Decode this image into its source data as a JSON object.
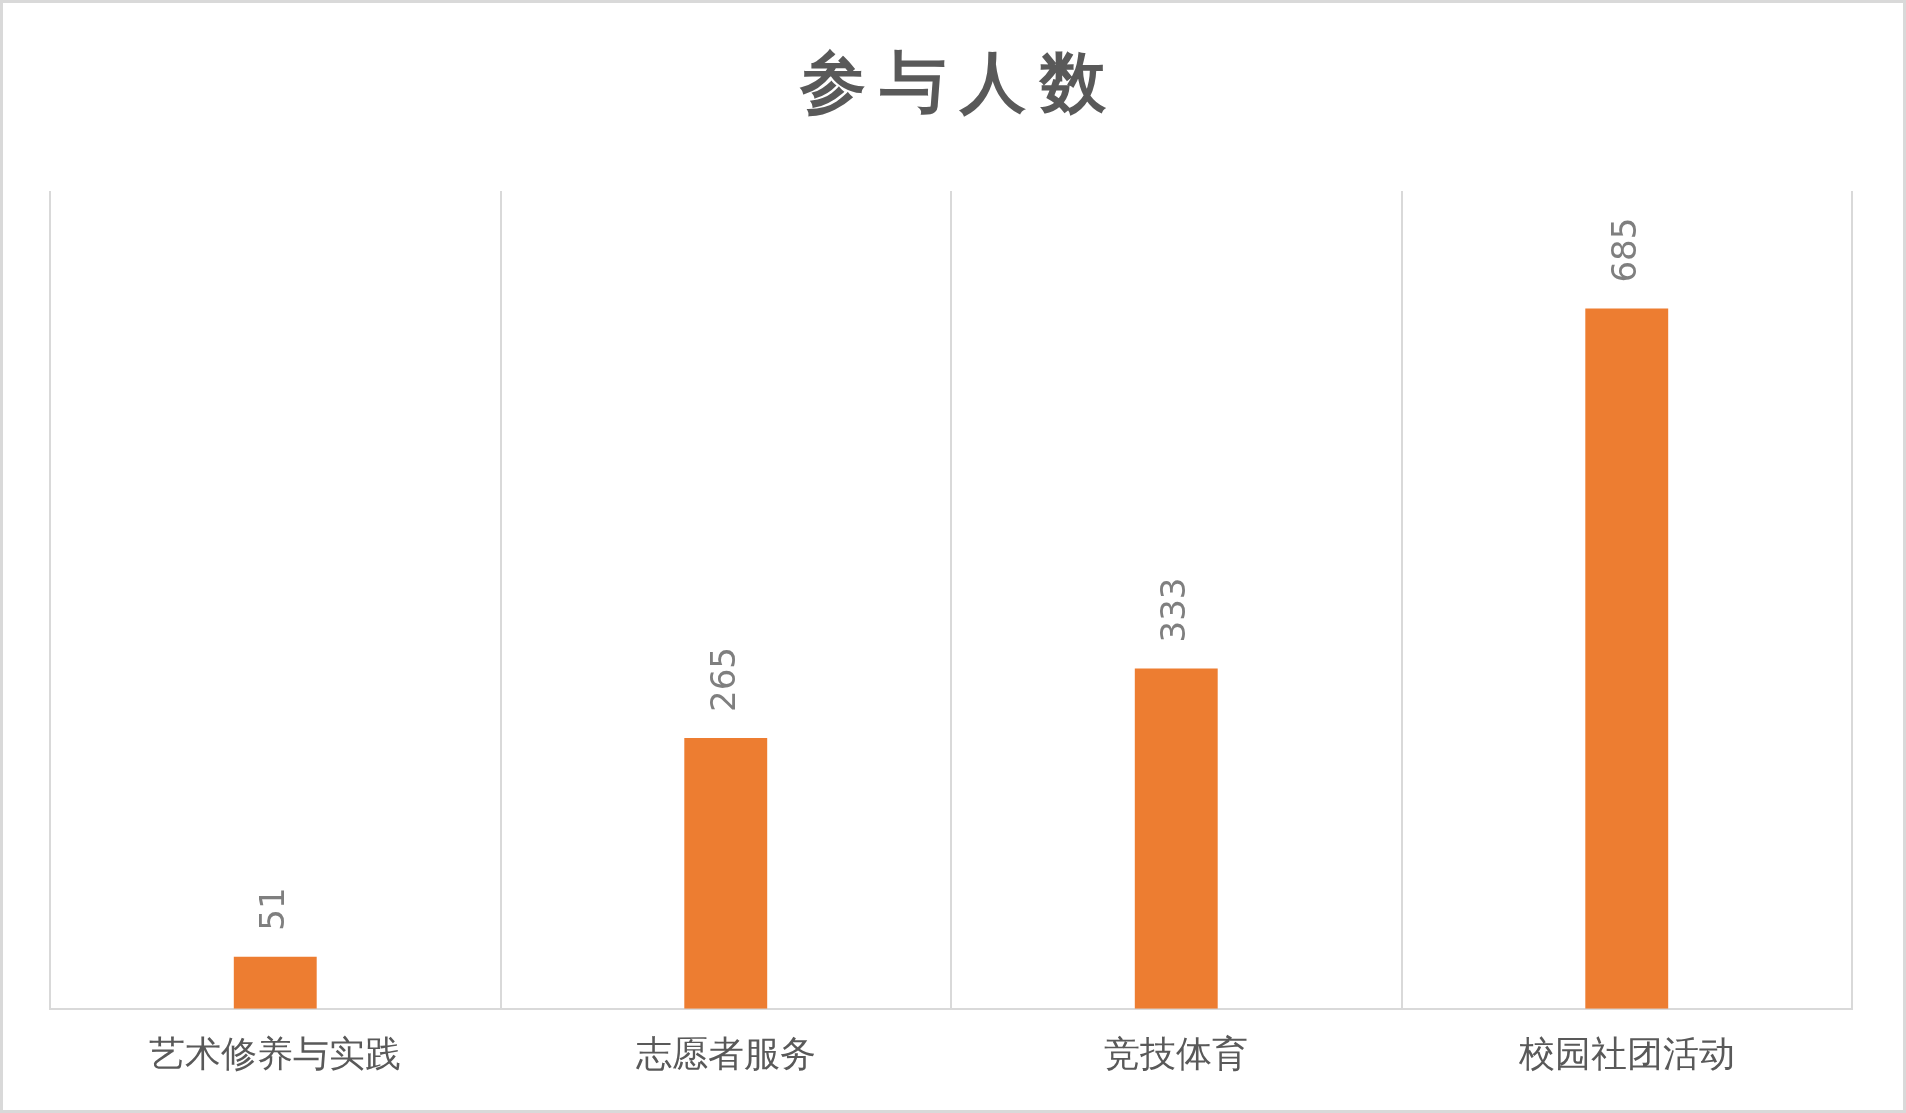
{
  "chart_data": {
    "type": "bar",
    "title": "参与人数",
    "categories": [
      "艺术修养与实践",
      "志愿者服务",
      "竞技体育",
      "校园社团活动"
    ],
    "values": [
      51,
      265,
      333,
      685
    ],
    "color": "#ed7d31",
    "ylim": [
      0,
      800
    ],
    "data_labels": true,
    "grid": "x",
    "tick_labels": "x"
  }
}
